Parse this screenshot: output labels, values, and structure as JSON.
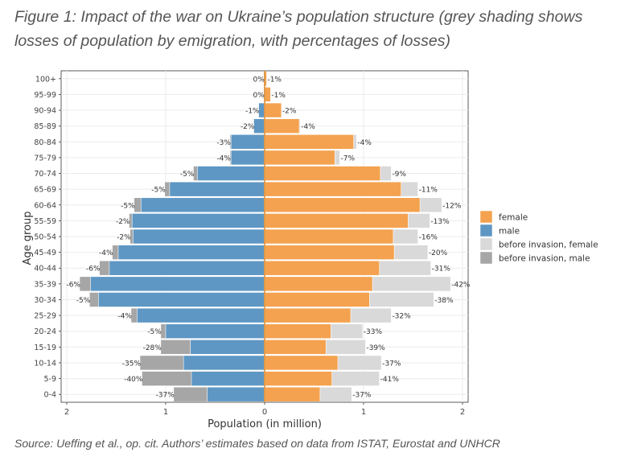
{
  "caption": "Figure 1: Impact of the war on Ukraine’s population structure (grey shading shows losses of population by emigration, with percentages of losses)",
  "source": "Source: Ueffing et al., op. cit. Authors’ estimates based on data from ISTAT, Eurostat and UNHCR",
  "chart_data": {
    "type": "bar",
    "orientation": "horizontal",
    "layout": "population-pyramid",
    "xlabel": "Population (in million)",
    "ylabel": "Age group",
    "xlim": [
      -2,
      2
    ],
    "x_ticks": [
      -2,
      -1,
      0,
      1,
      2
    ],
    "x_tick_labels": [
      "2",
      "1",
      "0",
      "1",
      "2"
    ],
    "legend_position": "right",
    "legend": [
      {
        "label": "female",
        "color": "#F4A24F"
      },
      {
        "label": "male",
        "color": "#5E97C4"
      },
      {
        "label": "before invasion, female",
        "color": "#D9D9D9"
      },
      {
        "label": "before invasion, male",
        "color": "#A6A6A6"
      }
    ],
    "colors": {
      "female": "#F4A24F",
      "male": "#5E97C4",
      "before_female": "#D9D9D9",
      "before_male": "#A6A6A6",
      "zero_line": "#E39A45"
    },
    "categories": [
      "0-4",
      "5-9",
      "10-14",
      "15-19",
      "20-24",
      "25-29",
      "30-34",
      "35-39",
      "40-44",
      "45-49",
      "50-54",
      "55-59",
      "60-64",
      "65-69",
      "70-74",
      "75-79",
      "80-84",
      "85-89",
      "90-94",
      "95-99",
      "100+"
    ],
    "series": [
      {
        "name": "female",
        "values": [
          0.56,
          0.68,
          0.74,
          0.62,
          0.67,
          0.87,
          1.06,
          1.09,
          1.16,
          1.31,
          1.3,
          1.45,
          1.57,
          1.38,
          1.17,
          0.71,
          0.9,
          0.35,
          0.17,
          0.06,
          0.02
        ]
      },
      {
        "name": "male",
        "values": [
          0.58,
          0.74,
          0.82,
          0.75,
          1.0,
          1.29,
          1.68,
          1.76,
          1.57,
          1.48,
          1.33,
          1.34,
          1.25,
          0.96,
          0.68,
          0.34,
          0.34,
          0.11,
          0.06,
          0.01,
          0.01
        ]
      },
      {
        "name": "before invasion, female",
        "values": [
          0.88,
          1.16,
          1.18,
          1.02,
          0.99,
          1.28,
          1.71,
          1.88,
          1.68,
          1.65,
          1.55,
          1.67,
          1.79,
          1.55,
          1.28,
          0.76,
          0.93,
          0.36,
          0.17,
          0.06,
          0.02
        ]
      },
      {
        "name": "before invasion, male",
        "values": [
          0.92,
          1.24,
          1.26,
          1.05,
          1.05,
          1.35,
          1.77,
          1.87,
          1.67,
          1.54,
          1.36,
          1.37,
          1.32,
          1.01,
          0.72,
          0.35,
          0.35,
          0.11,
          0.06,
          0.01,
          0.01
        ]
      }
    ],
    "male_loss_labels": [
      "-37%",
      "-40%",
      "-35%",
      "-28%",
      "-5%",
      "-4%",
      "-5%",
      "-6%",
      "-6%",
      "-4%",
      "-2%",
      "-2%",
      "-5%",
      "-5%",
      "-5%",
      "-4%",
      "-3%",
      "-2%",
      "-1%",
      "0%",
      "0%"
    ],
    "female_loss_labels": [
      "-37%",
      "-41%",
      "-37%",
      "-39%",
      "-33%",
      "-32%",
      "-38%",
      "-42%",
      "-31%",
      "-20%",
      "-16%",
      "-13%",
      "-12%",
      "-11%",
      "-9%",
      "-7%",
      "-4%",
      "-4%",
      "-2%",
      "-1%",
      "-1%"
    ]
  }
}
